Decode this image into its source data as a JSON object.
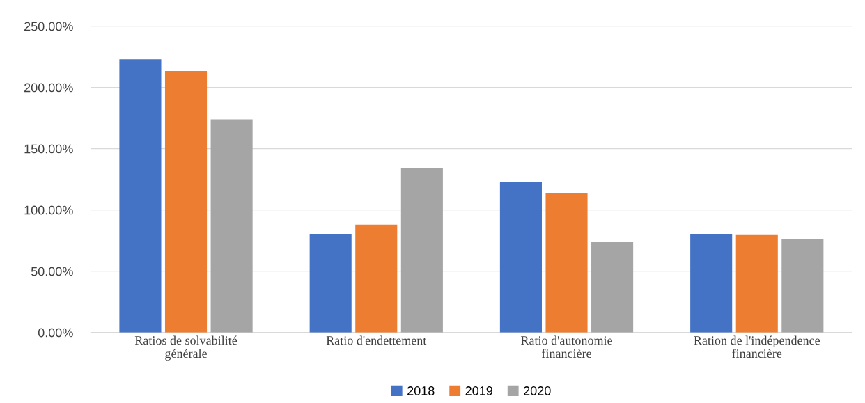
{
  "chart_data": {
    "type": "bar",
    "categories": [
      "Ratios de solvabilité\ngénérale",
      "Ratio d'endettement",
      "Ratio d'autonomie\nfinancière",
      "Ration de l'indépendence\nfinancière"
    ],
    "series": [
      {
        "name": "2018",
        "color": "#4472c4",
        "values": [
          223,
          80.5,
          123,
          80.5
        ]
      },
      {
        "name": "2019",
        "color": "#ed7d31",
        "values": [
          213.5,
          88,
          113.5,
          80
        ]
      },
      {
        "name": "2020",
        "color": "#a5a5a5",
        "values": [
          174,
          134,
          74,
          76
        ]
      }
    ],
    "ylim": [
      0,
      250
    ],
    "yticks": [
      {
        "value": 0,
        "label": "0.00%"
      },
      {
        "value": 50,
        "label": "50.00%"
      },
      {
        "value": 100,
        "label": "100.00%"
      },
      {
        "value": 150,
        "label": "150.00%"
      },
      {
        "value": 200,
        "label": "200.00%"
      },
      {
        "value": 250,
        "label": "250.00%"
      }
    ],
    "grid": "y",
    "legend": "bottom"
  }
}
